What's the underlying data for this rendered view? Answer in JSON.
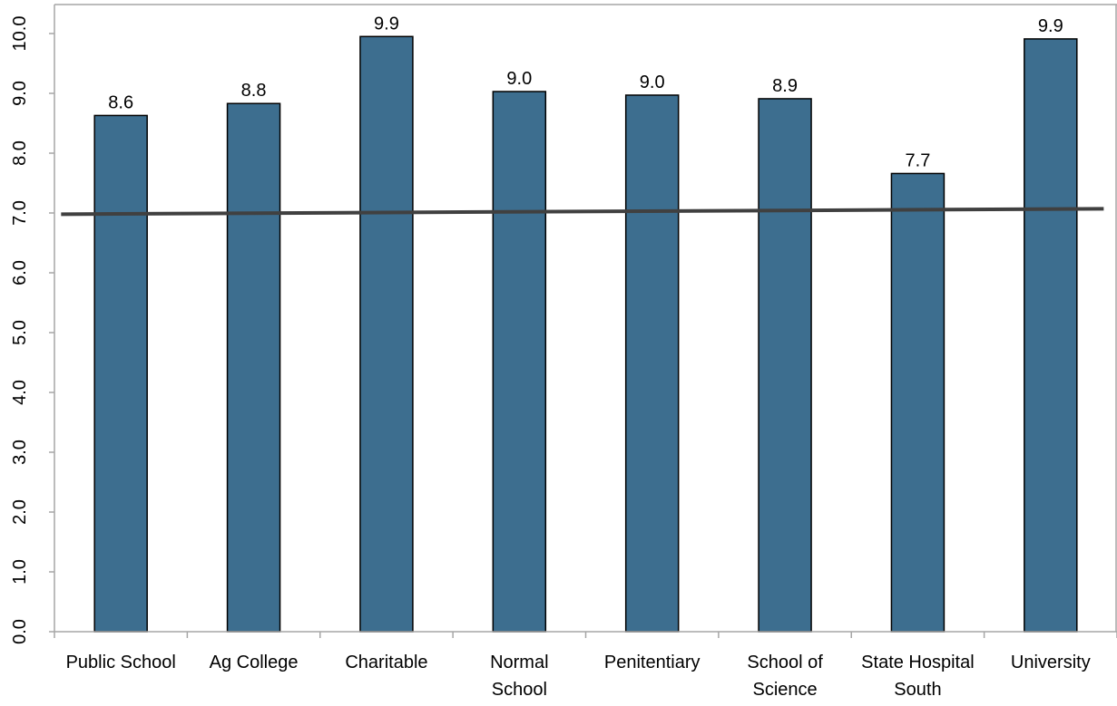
{
  "chart_data": {
    "type": "bar",
    "title": "",
    "xlabel": "",
    "ylabel": "",
    "ylim": [
      0,
      10
    ],
    "yticks": [
      "0.0",
      "1.0",
      "2.0",
      "3.0",
      "4.0",
      "5.0",
      "6.0",
      "7.0",
      "8.0",
      "9.0",
      "10.0"
    ],
    "categories": [
      [
        "Public School"
      ],
      [
        "Ag College"
      ],
      [
        "Charitable"
      ],
      [
        "Normal",
        "School"
      ],
      [
        "Penitentiary"
      ],
      [
        "School of",
        "Science"
      ],
      [
        "State Hospital",
        "South"
      ],
      [
        "University"
      ]
    ],
    "values": [
      8.63,
      8.83,
      9.95,
      9.03,
      8.97,
      8.91,
      7.66,
      9.91
    ],
    "data_labels": [
      "8.6",
      "8.8",
      "9.9",
      "9.0",
      "9.0",
      "8.9",
      "7.7",
      "9.9"
    ],
    "trendline": {
      "type": "linear",
      "start": 6.98,
      "end": 7.07
    },
    "grid": false,
    "colors": {
      "bar": "#3d6e8f",
      "bar_edge": "#000000",
      "trendline": "#404040",
      "axis": "#a6a6a6"
    }
  }
}
